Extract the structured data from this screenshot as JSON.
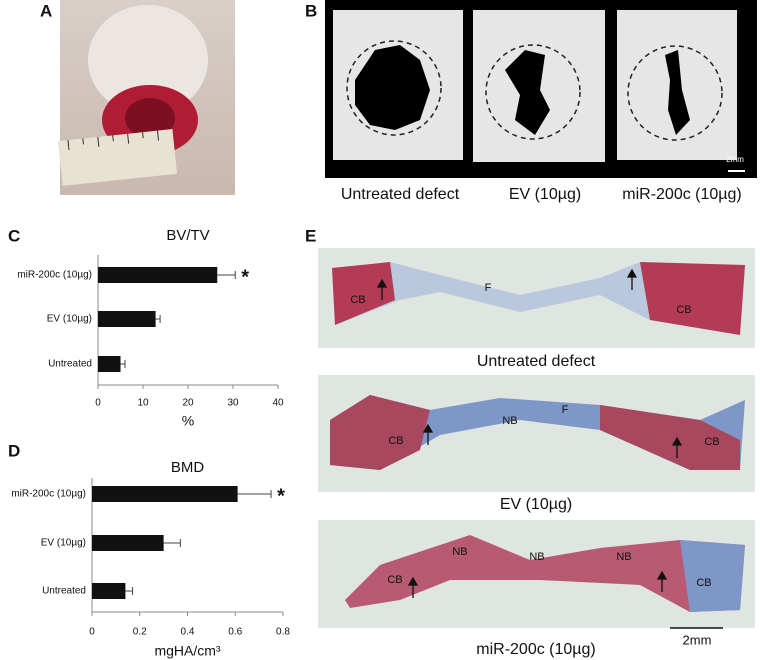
{
  "panel_labels": [
    "A",
    "B",
    "C",
    "D",
    "E"
  ],
  "panel_b": {
    "captions": [
      "Untreated defect",
      "EV (10µg)",
      "miR-200c (10µg)"
    ],
    "scale": "2mm"
  },
  "panel_e": {
    "images": [
      {
        "caption": "Untreated defect",
        "labels": [
          "CB",
          "F",
          "CB"
        ]
      },
      {
        "caption": "EV (10µg)",
        "labels": [
          "CB",
          "NB",
          "F",
          "CB"
        ]
      },
      {
        "caption": "miR-200c (10µg)",
        "labels": [
          "CB",
          "NB",
          "NB",
          "NB",
          "CB"
        ]
      }
    ],
    "scale": "2mm"
  },
  "chart_data": [
    {
      "type": "barh",
      "title": "BV/TV",
      "categories": [
        "miR-200c (10µg)",
        "EV (10µg)",
        "Untreated"
      ],
      "values": [
        26.5,
        12.8,
        5
      ],
      "errors": [
        4,
        1,
        1
      ],
      "color": "#111111",
      "annotation": "*",
      "xlim": [
        0,
        40
      ],
      "xticks": [
        0,
        10,
        20,
        30,
        40
      ],
      "xlabel": "%"
    },
    {
      "type": "barh",
      "title": "BMD",
      "categories": [
        "miR-200c (10µg)",
        "EV (10µg)",
        "Untreated"
      ],
      "values": [
        0.61,
        0.3,
        0.14
      ],
      "errors": [
        0.14,
        0.07,
        0.03
      ],
      "color": "#111111",
      "annotation": "*",
      "xlim": [
        0,
        0.8
      ],
      "xticks": [
        0,
        0.2,
        0.4,
        0.6,
        0.8
      ],
      "xlabel": "mgHA/cm³"
    }
  ]
}
